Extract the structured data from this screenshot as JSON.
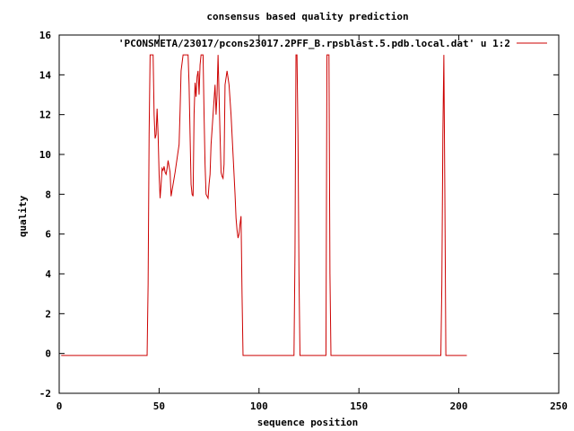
{
  "chart_data": {
    "type": "line",
    "title": "consensus based quality prediction",
    "xlabel": "sequence position",
    "ylabel": "quality",
    "xlim": [
      0,
      250
    ],
    "ylim": [
      -2,
      16
    ],
    "xticks": [
      0,
      50,
      100,
      150,
      200,
      250
    ],
    "yticks": [
      -2,
      0,
      2,
      4,
      6,
      8,
      10,
      12,
      14,
      16
    ],
    "grid": false,
    "legend": "top-right",
    "series": [
      {
        "name": "'PCONSMETA/23017/pcons23017.2PFF_B.rpsblast.5.pdb.local.dat' u 1:2",
        "color": "#cc0000",
        "points": [
          [
            1,
            -0.1
          ],
          [
            44,
            -0.1
          ],
          [
            44.5,
            3.5
          ],
          [
            45,
            11
          ],
          [
            45.5,
            15
          ],
          [
            47,
            15
          ],
          [
            47.5,
            12
          ],
          [
            48,
            10.8
          ],
          [
            48.5,
            11
          ],
          [
            49,
            12.3
          ],
          [
            49.5,
            11
          ],
          [
            50,
            9
          ],
          [
            50.5,
            7.8
          ],
          [
            51,
            8.5
          ],
          [
            51.5,
            9.3
          ],
          [
            52,
            9.2
          ],
          [
            52.5,
            9.4
          ],
          [
            53,
            9.1
          ],
          [
            53.5,
            9
          ],
          [
            54,
            9.3
          ],
          [
            54.5,
            9.7
          ],
          [
            55,
            9.4
          ],
          [
            55.5,
            9.1
          ],
          [
            56,
            7.9
          ],
          [
            57,
            8.5
          ],
          [
            58,
            9.1
          ],
          [
            59,
            9.8
          ],
          [
            60,
            10.5
          ],
          [
            60.5,
            12.2
          ],
          [
            61,
            14.2
          ],
          [
            62,
            15
          ],
          [
            64.5,
            15
          ],
          [
            65,
            13.5
          ],
          [
            65.5,
            11
          ],
          [
            66,
            8.5
          ],
          [
            66.5,
            8
          ],
          [
            67,
            7.9
          ],
          [
            67.5,
            12
          ],
          [
            68,
            13.6
          ],
          [
            68.5,
            12.9
          ],
          [
            69,
            13.9
          ],
          [
            69.5,
            14.2
          ],
          [
            70,
            13
          ],
          [
            70.5,
            14.5
          ],
          [
            71,
            15
          ],
          [
            72,
            15
          ],
          [
            72.5,
            12
          ],
          [
            73,
            9.5
          ],
          [
            73.5,
            8
          ],
          [
            74,
            7.9
          ],
          [
            74.5,
            7.8
          ],
          [
            75,
            8.5
          ],
          [
            75.5,
            9
          ],
          [
            76,
            10.5
          ],
          [
            77,
            12
          ],
          [
            78,
            13.5
          ],
          [
            78.5,
            12
          ],
          [
            79,
            13
          ],
          [
            79.5,
            15
          ],
          [
            80,
            13
          ],
          [
            80.5,
            11
          ],
          [
            81,
            9.1
          ],
          [
            81.5,
            8.9
          ],
          [
            82,
            8.8
          ],
          [
            82.5,
            9.5
          ],
          [
            83,
            13.5
          ],
          [
            84,
            14.2
          ],
          [
            85,
            13.5
          ],
          [
            86,
            12
          ],
          [
            87,
            10
          ],
          [
            88,
            8
          ],
          [
            88.5,
            6.8
          ],
          [
            89,
            6.2
          ],
          [
            89.5,
            5.8
          ],
          [
            90,
            6
          ],
          [
            90.5,
            6.5
          ],
          [
            91,
            6.9
          ],
          [
            91.5,
            3
          ],
          [
            92,
            -0.1
          ],
          [
            117.5,
            -0.1
          ],
          [
            118,
            5
          ],
          [
            118.5,
            15
          ],
          [
            119,
            15
          ],
          [
            119.5,
            11
          ],
          [
            120,
            4
          ],
          [
            120.5,
            -0.1
          ],
          [
            133.5,
            -0.1
          ],
          [
            134,
            15
          ],
          [
            135,
            15
          ],
          [
            135.5,
            4
          ],
          [
            136,
            -0.1
          ],
          [
            191,
            -0.1
          ],
          [
            191.5,
            3.5
          ],
          [
            192,
            11
          ],
          [
            192.5,
            15
          ],
          [
            193,
            8
          ],
          [
            193.5,
            -0.1
          ],
          [
            204,
            -0.1
          ]
        ]
      }
    ]
  }
}
